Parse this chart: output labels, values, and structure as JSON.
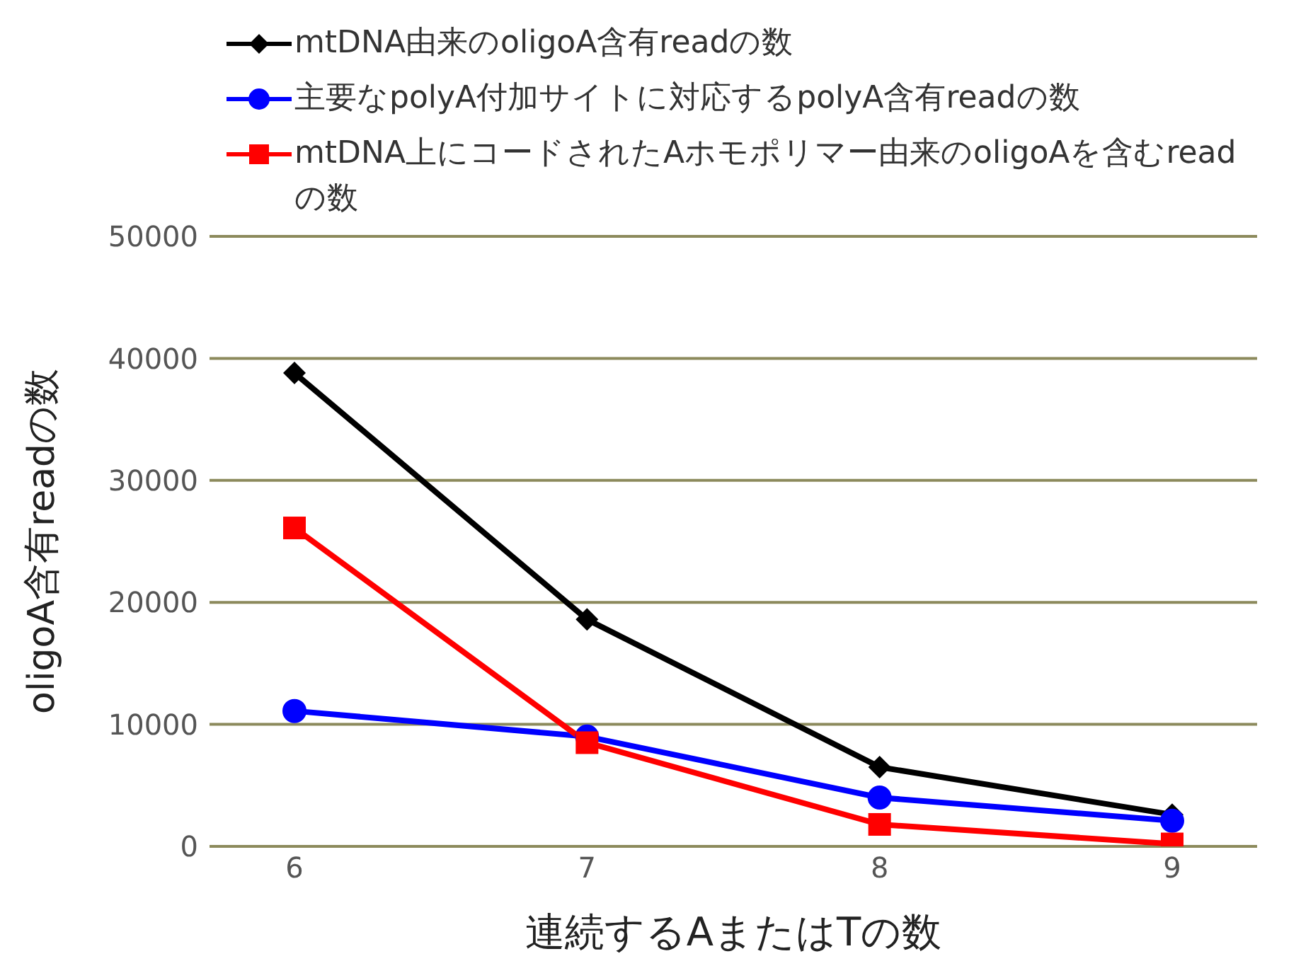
{
  "chart_data": {
    "type": "line",
    "xlabel": "連続するAまたはTの数",
    "ylabel": "oligoA含有readの数",
    "categories": [
      "6",
      "7",
      "8",
      "9"
    ],
    "ylim": [
      0,
      50000
    ],
    "yticks": [
      0,
      10000,
      20000,
      30000,
      40000,
      50000
    ],
    "grid": "y",
    "legend": "top",
    "series": [
      {
        "name": "mtDNA由来のoligoA含有readの数",
        "color": "#000000",
        "marker": "diamond",
        "values": [
          38800,
          18600,
          6500,
          2600
        ]
      },
      {
        "name": "主要なpolyA付加サイトに対応するpolyA含有readの数",
        "color": "#0000ff",
        "marker": "circle",
        "values": [
          11100,
          9000,
          4000,
          2100
        ]
      },
      {
        "name": "mtDNA上にコードされたAホモポリマー由来のoligoAを含むreadの数",
        "color": "#ff0000",
        "marker": "square",
        "values": [
          26100,
          8500,
          1800,
          200
        ]
      }
    ]
  }
}
